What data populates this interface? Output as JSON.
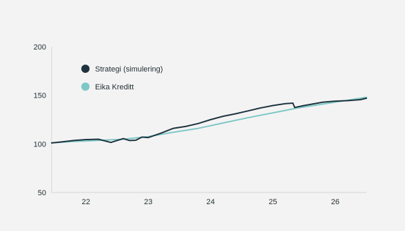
{
  "chart_data": {
    "type": "line",
    "title": "",
    "xlabel": "",
    "ylabel": "",
    "xlim": [
      21.45,
      26.5
    ],
    "ylim": [
      50,
      200
    ],
    "x_ticks": [
      22,
      23,
      24,
      25,
      26
    ],
    "x_tick_labels": [
      "22",
      "23",
      "24",
      "25",
      "26"
    ],
    "y_ticks": [
      50,
      100,
      150,
      200
    ],
    "y_tick_labels": [
      "50",
      "100",
      "150",
      "200"
    ],
    "grid": false,
    "legend_position": "top-left",
    "series": [
      {
        "name": "Strategi (simulering)",
        "color": "#1d3440",
        "x": [
          21.45,
          21.6,
          21.8,
          22.0,
          22.2,
          22.4,
          22.6,
          22.7,
          22.8,
          22.9,
          23.0,
          23.2,
          23.4,
          23.6,
          23.8,
          24.0,
          24.2,
          24.4,
          24.6,
          24.8,
          25.0,
          25.2,
          25.32,
          25.35,
          25.5,
          25.8,
          26.0,
          26.2,
          26.4,
          26.5
        ],
        "values": [
          101,
          102,
          103.5,
          104.5,
          104.8,
          101.5,
          105.5,
          103.5,
          103.8,
          107,
          106.5,
          111,
          116,
          118,
          121,
          125,
          128.5,
          131,
          134,
          137,
          139.5,
          141.5,
          142,
          137.5,
          139.5,
          143,
          144,
          144.5,
          145.5,
          147
        ]
      },
      {
        "name": "Eika Kreditt",
        "color": "#7dc8c6",
        "x": [
          21.45,
          21.8,
          22.0,
          22.3,
          22.6,
          23.0,
          23.4,
          23.8,
          24.2,
          24.6,
          25.0,
          25.4,
          25.8,
          26.2,
          26.5
        ],
        "values": [
          101,
          102.5,
          103,
          104,
          104.8,
          107.5,
          112,
          116,
          121.5,
          127,
          132,
          137,
          141,
          145,
          148
        ]
      }
    ]
  }
}
